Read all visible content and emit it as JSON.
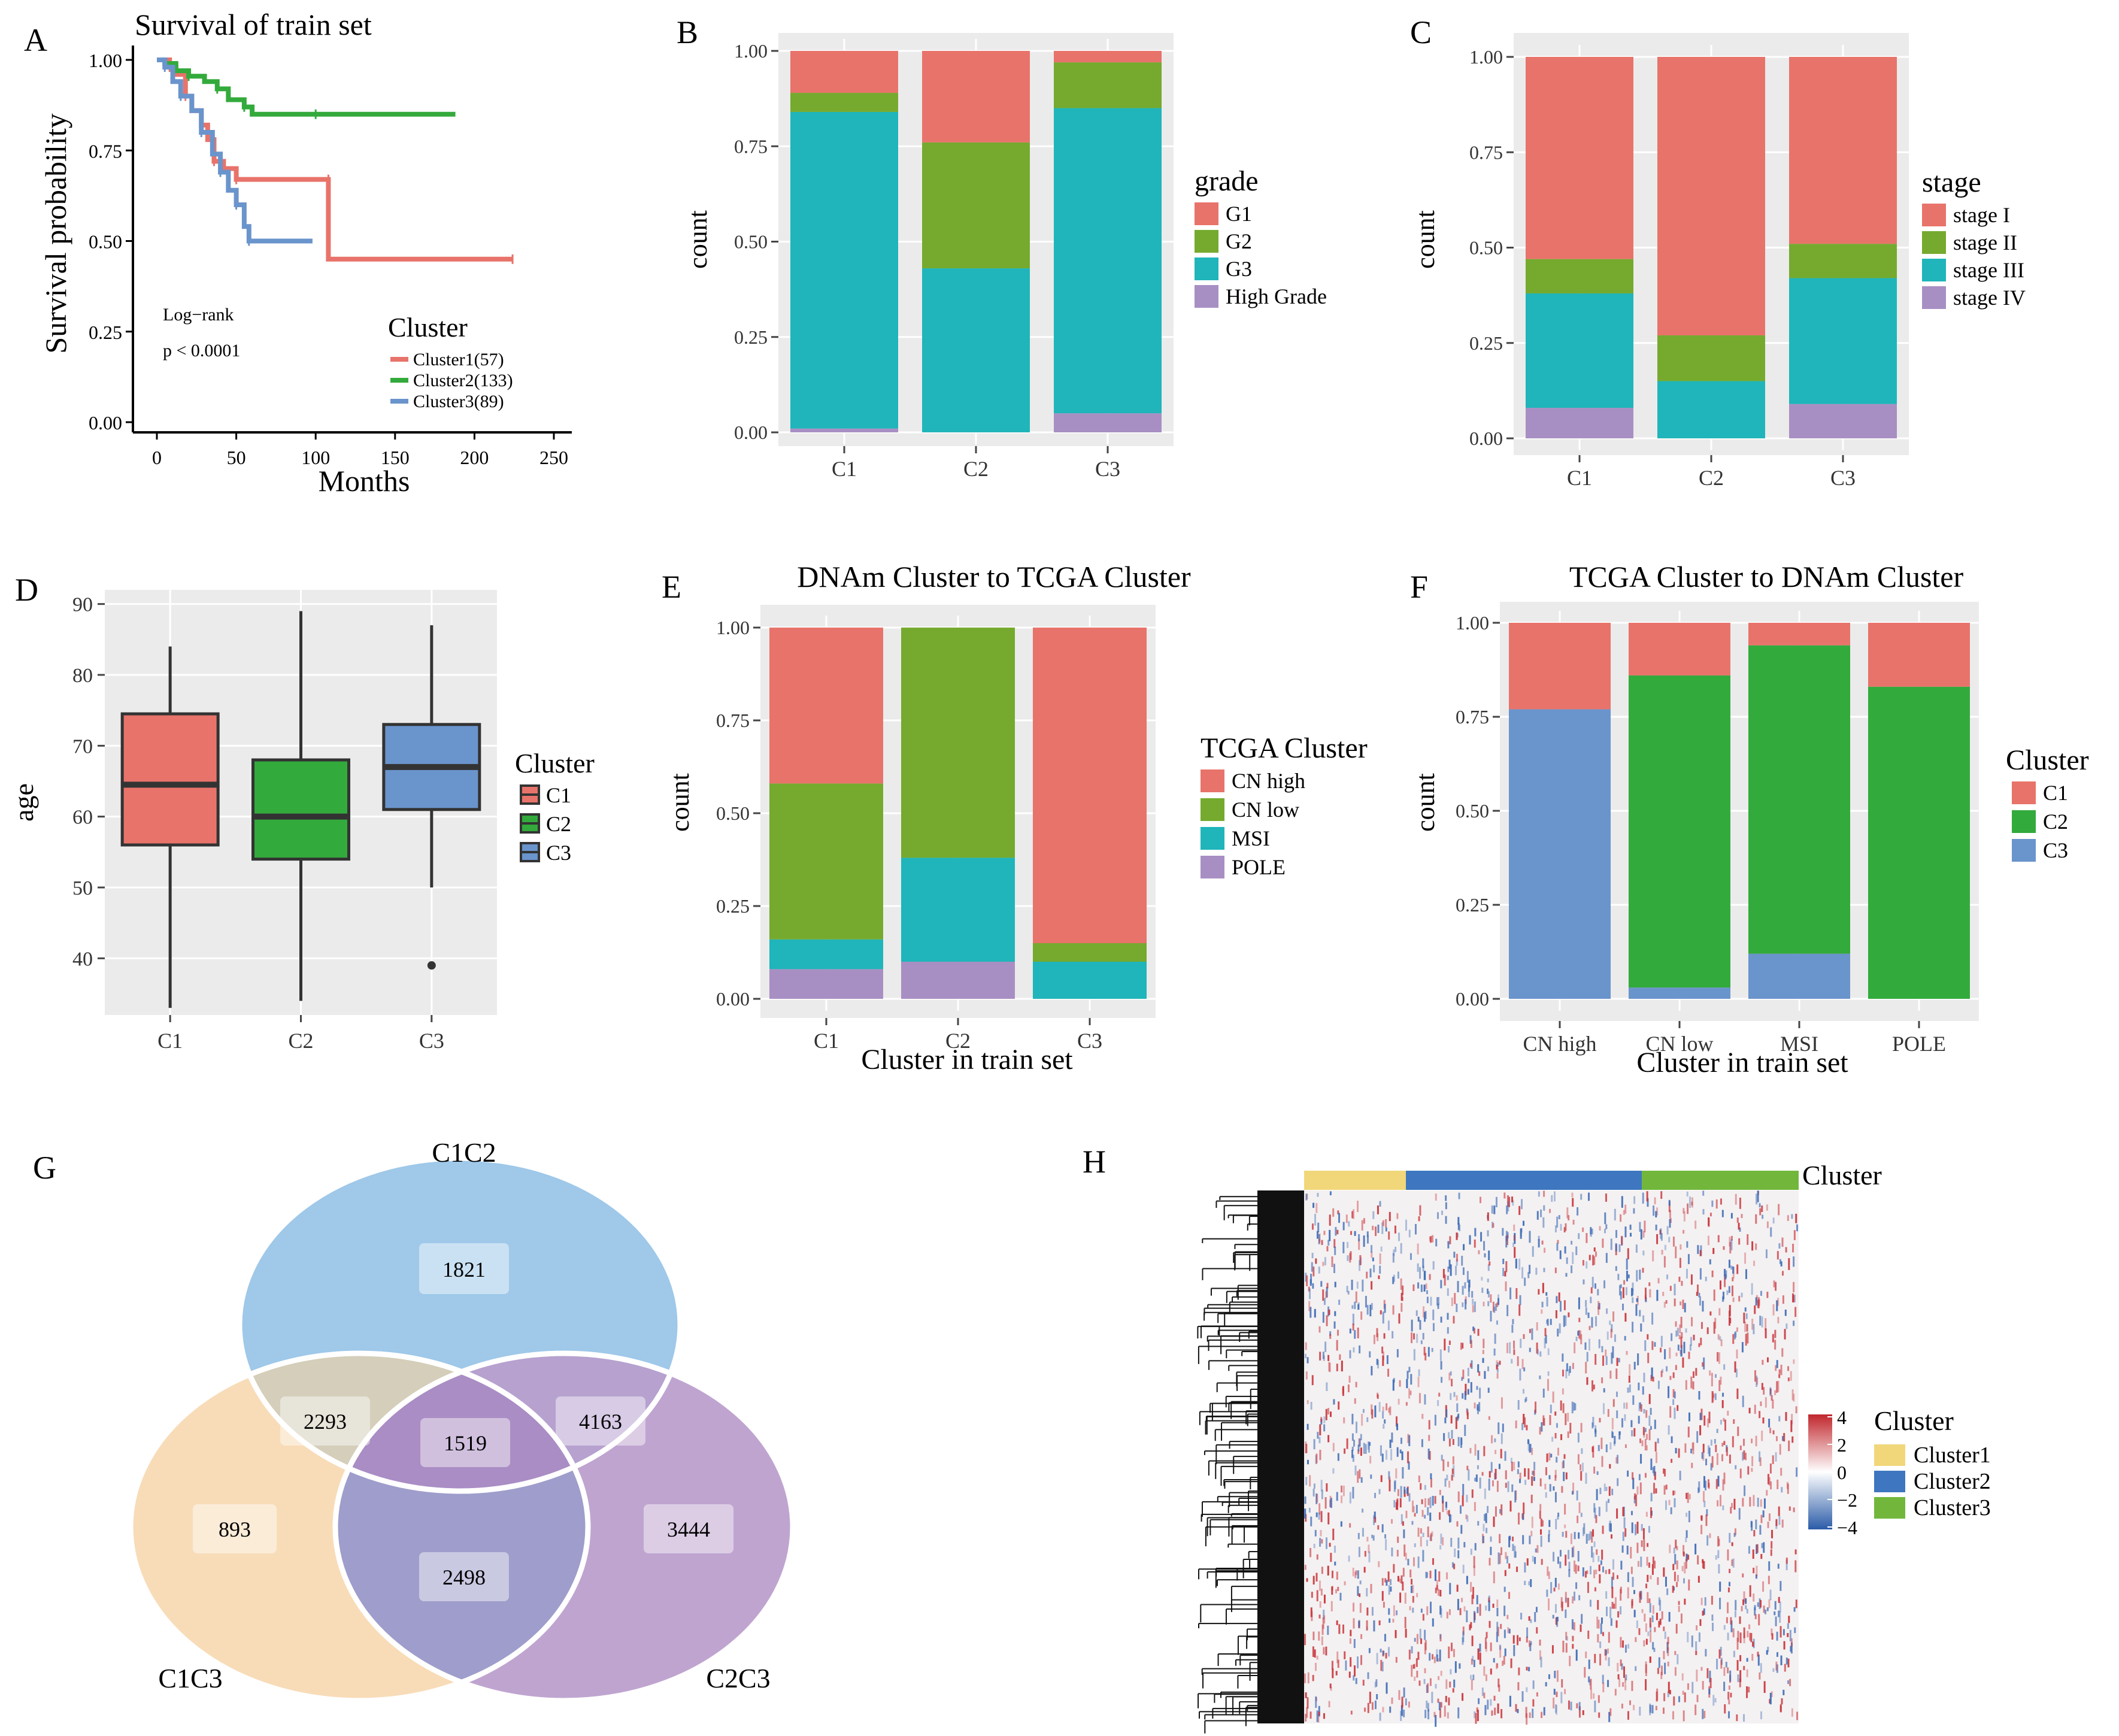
{
  "panel_labels": {
    "A": "A",
    "B": "B",
    "C": "C",
    "D": "D",
    "E": "E",
    "F": "F",
    "G": "G",
    "H": "H"
  },
  "colors": {
    "red": "#E8736A",
    "green": "#33AA3C",
    "blue": "#6A94CC",
    "olive": "#75AA2E",
    "teal": "#1FB5BA",
    "purple": "#A88FC3",
    "panel_bg": "#EBEBEB",
    "venn_c1c2": "#9FC8E9",
    "venn_c1c3": "#F8DCB8",
    "venn_c2c3": "#BFA4D0",
    "heat_cluster1": "#F1D77A",
    "heat_cluster2": "#3E77C0",
    "heat_cluster3": "#72B73C"
  },
  "chart_data": [
    {
      "id": "A",
      "type": "line",
      "title": "Survival of train set",
      "xlabel": "Months",
      "ylabel": "Survival probability",
      "xlim": [
        0,
        250
      ],
      "ylim": [
        0,
        1
      ],
      "x_ticks": [
        "0",
        "50",
        "100",
        "150",
        "200",
        "250"
      ],
      "y_ticks": [
        "0.00",
        "0.25",
        "0.50",
        "0.75",
        "1.00"
      ],
      "annotation_1": "Log−rank",
      "annotation_2": "p < 0.0001",
      "legend_title": "Cluster",
      "series": [
        {
          "name": "Cluster1(57)",
          "color": "#E8736A",
          "points": [
            [
              0,
              1
            ],
            [
              8,
              0.98
            ],
            [
              12,
              0.96
            ],
            [
              18,
              0.9
            ],
            [
              22,
              0.86
            ],
            [
              28,
              0.82
            ],
            [
              32,
              0.78
            ],
            [
              36,
              0.72
            ],
            [
              42,
              0.7
            ],
            [
              50,
              0.67
            ],
            [
              65,
              0.67
            ],
            [
              108,
              0.67
            ],
            [
              108,
              0.45
            ],
            [
              224,
              0.45
            ]
          ]
        },
        {
          "name": "Cluster2(133)",
          "color": "#33AA3C",
          "points": [
            [
              0,
              1
            ],
            [
              5,
              0.99
            ],
            [
              12,
              0.97
            ],
            [
              20,
              0.955
            ],
            [
              30,
              0.94
            ],
            [
              38,
              0.92
            ],
            [
              45,
              0.89
            ],
            [
              55,
              0.87
            ],
            [
              60,
              0.85
            ],
            [
              100,
              0.85
            ],
            [
              188,
              0.85
            ]
          ]
        },
        {
          "name": "Cluster3(89)",
          "color": "#6A94CC",
          "points": [
            [
              0,
              1
            ],
            [
              5,
              0.98
            ],
            [
              10,
              0.94
            ],
            [
              15,
              0.9
            ],
            [
              22,
              0.86
            ],
            [
              28,
              0.8
            ],
            [
              35,
              0.74
            ],
            [
              40,
              0.69
            ],
            [
              45,
              0.64
            ],
            [
              50,
              0.6
            ],
            [
              55,
              0.54
            ],
            [
              58,
              0.5
            ],
            [
              98,
              0.5
            ]
          ]
        }
      ]
    },
    {
      "id": "B",
      "type": "bar",
      "stacked": true,
      "xlabel": "",
      "ylabel": "count",
      "categories": [
        "C1",
        "C2",
        "C3"
      ],
      "y_ticks": [
        "0.00",
        "0.25",
        "0.50",
        "0.75",
        "1.00"
      ],
      "legend_title": "grade",
      "series": [
        {
          "name": "High Grade",
          "color": "#A88FC3",
          "values": [
            0.01,
            0.0,
            0.05
          ]
        },
        {
          "name": "G3",
          "color": "#1FB5BA",
          "values": [
            0.83,
            0.43,
            0.8
          ]
        },
        {
          "name": "G2",
          "color": "#75AA2E",
          "values": [
            0.05,
            0.33,
            0.12
          ]
        },
        {
          "name": "G1",
          "color": "#E8736A",
          "values": [
            0.11,
            0.24,
            0.03
          ]
        }
      ]
    },
    {
      "id": "C",
      "type": "bar",
      "stacked": true,
      "xlabel": "",
      "ylabel": "count",
      "categories": [
        "C1",
        "C2",
        "C3"
      ],
      "y_ticks": [
        "0.00",
        "0.25",
        "0.50",
        "0.75",
        "1.00"
      ],
      "legend_title": "stage",
      "series": [
        {
          "name": "stage IV",
          "color": "#A88FC3",
          "values": [
            0.08,
            0.0,
            0.09
          ]
        },
        {
          "name": "stage III",
          "color": "#1FB5BA",
          "values": [
            0.3,
            0.15,
            0.33
          ]
        },
        {
          "name": "stage II",
          "color": "#75AA2E",
          "values": [
            0.09,
            0.12,
            0.09
          ]
        },
        {
          "name": "stage I",
          "color": "#E8736A",
          "values": [
            0.53,
            0.73,
            0.49
          ]
        }
      ]
    },
    {
      "id": "D",
      "type": "box",
      "xlabel": "",
      "ylabel": "age",
      "categories": [
        "C1",
        "C2",
        "C3"
      ],
      "ylim": [
        32,
        92
      ],
      "y_ticks": [
        "40",
        "50",
        "60",
        "70",
        "80",
        "90"
      ],
      "legend_title": "Cluster",
      "boxes": [
        {
          "name": "C1",
          "color": "#E8736A",
          "min": 33,
          "q1": 56,
          "median": 64.5,
          "q3": 74.5,
          "max": 84,
          "outliers": []
        },
        {
          "name": "C2",
          "color": "#33AA3C",
          "min": 34,
          "q1": 54,
          "median": 60,
          "q3": 68,
          "max": 89,
          "outliers": []
        },
        {
          "name": "C3",
          "color": "#6A94CC",
          "min": 50,
          "q1": 61,
          "median": 67,
          "q3": 73,
          "max": 87,
          "outliers": [
            39
          ]
        }
      ]
    },
    {
      "id": "E",
      "type": "bar",
      "stacked": true,
      "title": "DNAm Cluster to TCGA Cluster",
      "xlabel": "Cluster in train set",
      "ylabel": "count",
      "categories": [
        "C1",
        "C2",
        "C3"
      ],
      "y_ticks": [
        "0.00",
        "0.25",
        "0.50",
        "0.75",
        "1.00"
      ],
      "legend_title": "TCGA Cluster",
      "series": [
        {
          "name": "POLE",
          "color": "#A88FC3",
          "values": [
            0.08,
            0.1,
            0.0
          ]
        },
        {
          "name": "MSI",
          "color": "#1FB5BA",
          "values": [
            0.08,
            0.28,
            0.1
          ]
        },
        {
          "name": "CN low",
          "color": "#75AA2E",
          "values": [
            0.42,
            0.62,
            0.05
          ]
        },
        {
          "name": "CN high",
          "color": "#E8736A",
          "values": [
            0.42,
            0.0,
            0.85
          ]
        }
      ]
    },
    {
      "id": "F",
      "type": "bar",
      "stacked": true,
      "title": "TCGA Cluster to DNAm Cluster",
      "xlabel": "Cluster in train set",
      "ylabel": "count",
      "categories": [
        "CN high",
        "CN low",
        "MSI",
        "POLE"
      ],
      "y_ticks": [
        "0.00",
        "0.25",
        "0.50",
        "0.75",
        "1.00"
      ],
      "legend_title": "Cluster",
      "series": [
        {
          "name": "C3",
          "color": "#6A94CC",
          "values": [
            0.77,
            0.03,
            0.12,
            0.0
          ]
        },
        {
          "name": "C2",
          "color": "#33AA3C",
          "values": [
            0.0,
            0.83,
            0.82,
            0.83
          ]
        },
        {
          "name": "C1",
          "color": "#E8736A",
          "values": [
            0.23,
            0.14,
            0.06,
            0.17
          ]
        }
      ]
    },
    {
      "id": "G",
      "type": "venn",
      "set_labels": {
        "c1c2": "C1C2",
        "c1c3": "C1C3",
        "c2c3": "C2C3"
      },
      "regions": {
        "c1c2_only": "1821",
        "c1c3_only": "893",
        "c2c3_only": "3444",
        "c1c2_c1c3": "2293",
        "c1c2_c2c3": "4163",
        "c1c3_c2c3": "2498",
        "all": "1519"
      }
    },
    {
      "id": "H",
      "type": "heatmap",
      "annotation_title": "Cluster",
      "scale_ticks": [
        "4",
        "2",
        "0",
        "−2",
        "−4"
      ],
      "scale_range": [
        -4,
        4
      ],
      "legend_title": "Cluster",
      "legend": [
        {
          "name": "Cluster1",
          "color": "#F1D77A"
        },
        {
          "name": "Cluster2",
          "color": "#3E77C0"
        },
        {
          "name": "Cluster3",
          "color": "#72B73C"
        }
      ]
    }
  ]
}
